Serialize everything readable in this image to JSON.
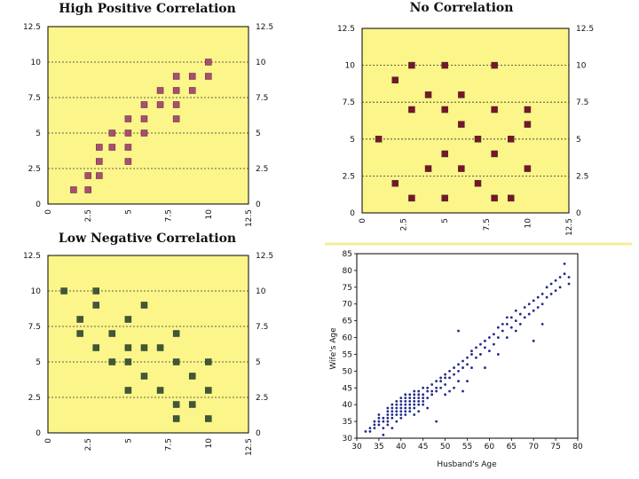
{
  "chart_data": [
    {
      "type": "scatter",
      "title": "High Positive Correlation",
      "xlim": [
        0,
        12.5
      ],
      "ylim": [
        0,
        12.5
      ],
      "xticks": [
        "0",
        "2.5",
        "5",
        "7.5",
        "10",
        "12.5"
      ],
      "yticks": [
        "0",
        "2.5",
        "5",
        "7.5",
        "10",
        "12.5"
      ],
      "marker_color": "#b04a72",
      "background": "#fbf58a",
      "points": [
        [
          1.6,
          1
        ],
        [
          2.5,
          1
        ],
        [
          2.5,
          2
        ],
        [
          3.2,
          2
        ],
        [
          3.2,
          3
        ],
        [
          3.2,
          4
        ],
        [
          4,
          4
        ],
        [
          4,
          5
        ],
        [
          5,
          3
        ],
        [
          5,
          4
        ],
        [
          5,
          5
        ],
        [
          5,
          6
        ],
        [
          6,
          5
        ],
        [
          6,
          6
        ],
        [
          6,
          7
        ],
        [
          7,
          7
        ],
        [
          7,
          8
        ],
        [
          8,
          6
        ],
        [
          8,
          7
        ],
        [
          8,
          8
        ],
        [
          8,
          9
        ],
        [
          9,
          8
        ],
        [
          9,
          9
        ],
        [
          10,
          9
        ],
        [
          10,
          10
        ]
      ]
    },
    {
      "type": "scatter",
      "title": "No Correlation",
      "xlim": [
        0,
        12.5
      ],
      "ylim": [
        0,
        12.5
      ],
      "xticks": [
        "0",
        "2.5",
        "5",
        "7.5",
        "10",
        "12.5"
      ],
      "yticks": [
        "0",
        "2.5",
        "5",
        "7.5",
        "10",
        "12.5"
      ],
      "marker_color": "#7a1428",
      "background": "#fbf58a",
      "points": [
        [
          1,
          5
        ],
        [
          2,
          2
        ],
        [
          2,
          9
        ],
        [
          3,
          1
        ],
        [
          3,
          7
        ],
        [
          3,
          10
        ],
        [
          4,
          3
        ],
        [
          4,
          8
        ],
        [
          5,
          1
        ],
        [
          5,
          4
        ],
        [
          5,
          7
        ],
        [
          5,
          10
        ],
        [
          6,
          3
        ],
        [
          6,
          6
        ],
        [
          6,
          8
        ],
        [
          7,
          2
        ],
        [
          7,
          5
        ],
        [
          8,
          1
        ],
        [
          8,
          4
        ],
        [
          8,
          7
        ],
        [
          8,
          10
        ],
        [
          9,
          1
        ],
        [
          9,
          5
        ],
        [
          10,
          3
        ],
        [
          10,
          6
        ],
        [
          10,
          7
        ]
      ]
    },
    {
      "type": "scatter",
      "title": "Low Negative Correlation",
      "xlim": [
        0,
        12.5
      ],
      "ylim": [
        0,
        12.5
      ],
      "xticks": [
        "0",
        "2.5",
        "5",
        "7.5",
        "10",
        "12.5"
      ],
      "yticks": [
        "0",
        "2.5",
        "5",
        "7.5",
        "10",
        "12.5"
      ],
      "marker_color": "#3d5a35",
      "background": "#fbf58a",
      "points": [
        [
          1,
          10
        ],
        [
          2,
          7
        ],
        [
          2,
          8
        ],
        [
          3,
          6
        ],
        [
          3,
          9
        ],
        [
          3,
          10
        ],
        [
          4,
          5
        ],
        [
          4,
          7
        ],
        [
          5,
          3
        ],
        [
          5,
          5
        ],
        [
          5,
          6
        ],
        [
          5,
          8
        ],
        [
          6,
          4
        ],
        [
          6,
          6
        ],
        [
          6,
          9
        ],
        [
          7,
          3
        ],
        [
          7,
          6
        ],
        [
          8,
          1
        ],
        [
          8,
          2
        ],
        [
          8,
          5
        ],
        [
          8,
          7
        ],
        [
          9,
          2
        ],
        [
          9,
          4
        ],
        [
          10,
          1
        ],
        [
          10,
          3
        ],
        [
          10,
          5
        ]
      ]
    },
    {
      "type": "scatter",
      "title": "",
      "xlabel": "Husband's Age",
      "ylabel": "Wife's Age",
      "xlim": [
        30,
        80
      ],
      "ylim": [
        30,
        85
      ],
      "xticks": [
        "30",
        "35",
        "40",
        "45",
        "50",
        "55",
        "60",
        "65",
        "70",
        "75",
        "80"
      ],
      "yticks": [
        "30",
        "35",
        "40",
        "45",
        "50",
        "55",
        "60",
        "65",
        "70",
        "75",
        "80",
        "85"
      ],
      "marker_color": "#1f2b8a",
      "background": "#ffffff",
      "points": [
        [
          32,
          32
        ],
        [
          33,
          32
        ],
        [
          33,
          33
        ],
        [
          34,
          33
        ],
        [
          34,
          34
        ],
        [
          34,
          35
        ],
        [
          35,
          34
        ],
        [
          35,
          35
        ],
        [
          35,
          36
        ],
        [
          35,
          37
        ],
        [
          36,
          31
        ],
        [
          36,
          33
        ],
        [
          36,
          35
        ],
        [
          36,
          36
        ],
        [
          37,
          34
        ],
        [
          37,
          35
        ],
        [
          37,
          36
        ],
        [
          37,
          37
        ],
        [
          37,
          38
        ],
        [
          37,
          39
        ],
        [
          38,
          33
        ],
        [
          38,
          36
        ],
        [
          38,
          37
        ],
        [
          38,
          38
        ],
        [
          38,
          39
        ],
        [
          38,
          40
        ],
        [
          39,
          35
        ],
        [
          39,
          37
        ],
        [
          39,
          38
        ],
        [
          39,
          39
        ],
        [
          39,
          40
        ],
        [
          39,
          41
        ],
        [
          40,
          36
        ],
        [
          40,
          37
        ],
        [
          40,
          38
        ],
        [
          40,
          39
        ],
        [
          40,
          40
        ],
        [
          40,
          41
        ],
        [
          40,
          42
        ],
        [
          41,
          37
        ],
        [
          41,
          38
        ],
        [
          41,
          39
        ],
        [
          41,
          40
        ],
        [
          41,
          41
        ],
        [
          41,
          42
        ],
        [
          41,
          43
        ],
        [
          42,
          38
        ],
        [
          42,
          39
        ],
        [
          42,
          40
        ],
        [
          42,
          41
        ],
        [
          42,
          42
        ],
        [
          42,
          43
        ],
        [
          43,
          37
        ],
        [
          43,
          39
        ],
        [
          43,
          40
        ],
        [
          43,
          41
        ],
        [
          43,
          42
        ],
        [
          43,
          43
        ],
        [
          43,
          44
        ],
        [
          44,
          38
        ],
        [
          44,
          40
        ],
        [
          44,
          41
        ],
        [
          44,
          42
        ],
        [
          44,
          43
        ],
        [
          44,
          44
        ],
        [
          45,
          40
        ],
        [
          45,
          41
        ],
        [
          45,
          42
        ],
        [
          45,
          43
        ],
        [
          45,
          45
        ],
        [
          46,
          39
        ],
        [
          46,
          42
        ],
        [
          46,
          44
        ],
        [
          46,
          45
        ],
        [
          47,
          43
        ],
        [
          47,
          44
        ],
        [
          47,
          46
        ],
        [
          48,
          35
        ],
        [
          48,
          44
        ],
        [
          48,
          45
        ],
        [
          48,
          47
        ],
        [
          49,
          45
        ],
        [
          49,
          47
        ],
        [
          49,
          48
        ],
        [
          50,
          43
        ],
        [
          50,
          46
        ],
        [
          50,
          48
        ],
        [
          50,
          49
        ],
        [
          51,
          44
        ],
        [
          51,
          48
        ],
        [
          51,
          50
        ],
        [
          52,
          45
        ],
        [
          52,
          49
        ],
        [
          52,
          51
        ],
        [
          53,
          47
        ],
        [
          53,
          50
        ],
        [
          53,
          52
        ],
        [
          53,
          62
        ],
        [
          54,
          44
        ],
        [
          54,
          51
        ],
        [
          54,
          53
        ],
        [
          55,
          47
        ],
        [
          55,
          52
        ],
        [
          55,
          54
        ],
        [
          56,
          51
        ],
        [
          56,
          55
        ],
        [
          56,
          56
        ],
        [
          57,
          54
        ],
        [
          57,
          57
        ],
        [
          58,
          55
        ],
        [
          58,
          58
        ],
        [
          59,
          51
        ],
        [
          59,
          57
        ],
        [
          59,
          59
        ],
        [
          60,
          56
        ],
        [
          60,
          60
        ],
        [
          61,
          58
        ],
        [
          61,
          61
        ],
        [
          62,
          55
        ],
        [
          62,
          60
        ],
        [
          62,
          63
        ],
        [
          63,
          62
        ],
        [
          63,
          64
        ],
        [
          64,
          60
        ],
        [
          64,
          64
        ],
        [
          64,
          66
        ],
        [
          65,
          63
        ],
        [
          65,
          66
        ],
        [
          66,
          62
        ],
        [
          66,
          65
        ],
        [
          66,
          68
        ],
        [
          67,
          64
        ],
        [
          67,
          67
        ],
        [
          68,
          66
        ],
        [
          68,
          69
        ],
        [
          69,
          67
        ],
        [
          69,
          70
        ],
        [
          70,
          59
        ],
        [
          70,
          68
        ],
        [
          70,
          71
        ],
        [
          71,
          69
        ],
        [
          71,
          72
        ],
        [
          72,
          64
        ],
        [
          72,
          70
        ],
        [
          72,
          73
        ],
        [
          73,
          72
        ],
        [
          73,
          75
        ],
        [
          74,
          73
        ],
        [
          74,
          76
        ],
        [
          75,
          74
        ],
        [
          75,
          77
        ],
        [
          76,
          75
        ],
        [
          76,
          78
        ],
        [
          77,
          79
        ],
        [
          77,
          82
        ],
        [
          78,
          76
        ],
        [
          78,
          78
        ]
      ]
    }
  ]
}
